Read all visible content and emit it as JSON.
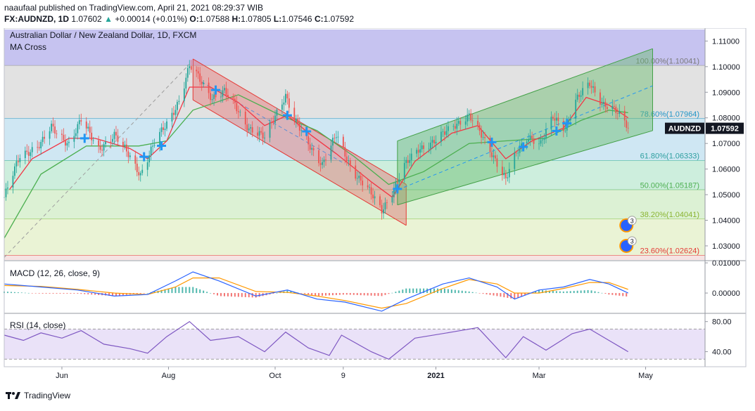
{
  "header": {
    "publisher": "naaufaal published on TradingView.com, April 21, 2021 08:29:37 WIB",
    "symbol": "FX:AUDNZD, 1D",
    "last": "1.07602",
    "change_arrow": "▲",
    "change": "+0.00014 (+0.01%)",
    "open_label": "O:",
    "open": "1.07588",
    "high_label": "H:",
    "high": "1.07805",
    "low_label": "L:",
    "low": "1.07546",
    "close_label": "C:",
    "close": "1.07592"
  },
  "footer": {
    "brand": "TradingView"
  },
  "colors": {
    "up": "#26a69a",
    "down": "#ef5350",
    "ma_fast": "#f23645",
    "ma_slow": "#4caf50",
    "cross": "#2196f3",
    "macd_line": "#2962ff",
    "signal_line": "#ff9800",
    "rsi": "#7e57c2",
    "channel_down": "#e53935",
    "channel_up": "#43a047"
  },
  "chart_data": {
    "type": "line",
    "title": "Australian Dollar / New Zealand Dollar, 1D, FXCM",
    "indicator_label": "MA Cross",
    "price_tag_label": "AUDNZD",
    "price_tag_value": "1.07592",
    "ylim": [
      1.0245,
      1.1145
    ],
    "y_ticks": [
      "1.11000",
      "1.10000",
      "1.09000",
      "1.08000",
      "1.07000",
      "1.06000",
      "1.05000",
      "1.04000",
      "1.03000"
    ],
    "x_tick_labels": [
      {
        "label": "Jun",
        "t": "2020-06-01"
      },
      {
        "label": "Aug",
        "t": "2020-08-01"
      },
      {
        "label": "Oct",
        "t": "2020-10-01"
      },
      {
        "label": "9",
        "t": "2020-11-09"
      },
      {
        "label": "2021",
        "t": "2021-01-01",
        "bold": true
      },
      {
        "label": "Mar",
        "t": "2021-03-01"
      },
      {
        "label": "May",
        "t": "2021-05-01"
      }
    ],
    "x_range": [
      "2020-04-29",
      "2021-06-04"
    ],
    "fib_levels": [
      {
        "label": "100.00%(1.10041)",
        "value": 1.10041,
        "fill": "#c6c3f0",
        "text": "#7a7a7a",
        "line": "#888888"
      },
      {
        "label": "78.60%(1.07964)",
        "value": 1.07964,
        "fill": "#e2e2e2",
        "text": "#2196c8",
        "line": "#2196c8"
      },
      {
        "label": "61.80%(1.06333)",
        "value": 1.06333,
        "fill": "#cfe7f3",
        "text": "#2e9fa0",
        "line": "#26a69a"
      },
      {
        "label": "50.00%(1.05187)",
        "value": 1.05187,
        "fill": "#cdeedd",
        "text": "#4caf50",
        "line": "#4caf50"
      },
      {
        "label": "38.20%(1.04041)",
        "value": 1.04041,
        "fill": "#dcf1d4",
        "text": "#8ab430",
        "line": "#8bc34a"
      },
      {
        "label": "23.60%(1.02624)",
        "value": 1.02624,
        "fill": "#eaf3d5",
        "text": "#e53935",
        "line": "#e53935"
      }
    ],
    "price_series": [
      {
        "t": "2020-04-29",
        "v": 1.049
      },
      {
        "t": "2020-05-08",
        "v": 1.065
      },
      {
        "t": "2020-05-20",
        "v": 1.07
      },
      {
        "t": "2020-05-26",
        "v": 1.076
      },
      {
        "t": "2020-06-05",
        "v": 1.07
      },
      {
        "t": "2020-06-12",
        "v": 1.079
      },
      {
        "t": "2020-06-22",
        "v": 1.068
      },
      {
        "t": "2020-07-01",
        "v": 1.073
      },
      {
        "t": "2020-07-10",
        "v": 1.065
      },
      {
        "t": "2020-07-16",
        "v": 1.058
      },
      {
        "t": "2020-07-24",
        "v": 1.07
      },
      {
        "t": "2020-07-31",
        "v": 1.078
      },
      {
        "t": "2020-08-08",
        "v": 1.088
      },
      {
        "t": "2020-08-13",
        "v": 1.1
      },
      {
        "t": "2020-08-18",
        "v": 1.096
      },
      {
        "t": "2020-08-26",
        "v": 1.088
      },
      {
        "t": "2020-09-02",
        "v": 1.09
      },
      {
        "t": "2020-09-08",
        "v": 1.085
      },
      {
        "t": "2020-09-16",
        "v": 1.076
      },
      {
        "t": "2020-09-25",
        "v": 1.072
      },
      {
        "t": "2020-10-03",
        "v": 1.084
      },
      {
        "t": "2020-10-07",
        "v": 1.089
      },
      {
        "t": "2020-10-12",
        "v": 1.079
      },
      {
        "t": "2020-10-20",
        "v": 1.07
      },
      {
        "t": "2020-10-28",
        "v": 1.062
      },
      {
        "t": "2020-11-05",
        "v": 1.073
      },
      {
        "t": "2020-11-14",
        "v": 1.06
      },
      {
        "t": "2020-11-23",
        "v": 1.052
      },
      {
        "t": "2020-12-01",
        "v": 1.044
      },
      {
        "t": "2020-12-07",
        "v": 1.051
      },
      {
        "t": "2020-12-14",
        "v": 1.061
      },
      {
        "t": "2020-12-22",
        "v": 1.068
      },
      {
        "t": "2021-01-01",
        "v": 1.071
      },
      {
        "t": "2021-01-11",
        "v": 1.077
      },
      {
        "t": "2021-01-20",
        "v": 1.081
      },
      {
        "t": "2021-01-27",
        "v": 1.073
      },
      {
        "t": "2021-02-04",
        "v": 1.064
      },
      {
        "t": "2021-02-10",
        "v": 1.056
      },
      {
        "t": "2021-02-16",
        "v": 1.066
      },
      {
        "t": "2021-02-23",
        "v": 1.073
      },
      {
        "t": "2021-03-02",
        "v": 1.07
      },
      {
        "t": "2021-03-09",
        "v": 1.08
      },
      {
        "t": "2021-03-16",
        "v": 1.076
      },
      {
        "t": "2021-03-22",
        "v": 1.087
      },
      {
        "t": "2021-03-30",
        "v": 1.093
      },
      {
        "t": "2021-04-06",
        "v": 1.086
      },
      {
        "t": "2021-04-12",
        "v": 1.084
      },
      {
        "t": "2021-04-17",
        "v": 1.08
      },
      {
        "t": "2021-04-21",
        "v": 1.0759
      }
    ],
    "ma_fast": [
      {
        "t": "2020-05-02",
        "v": 1.052
      },
      {
        "t": "2020-05-15",
        "v": 1.064
      },
      {
        "t": "2020-06-05",
        "v": 1.072
      },
      {
        "t": "2020-06-20",
        "v": 1.072
      },
      {
        "t": "2020-07-10",
        "v": 1.068
      },
      {
        "t": "2020-07-20",
        "v": 1.064
      },
      {
        "t": "2020-07-31",
        "v": 1.071
      },
      {
        "t": "2020-08-13",
        "v": 1.092
      },
      {
        "t": "2020-08-25",
        "v": 1.092
      },
      {
        "t": "2020-09-10",
        "v": 1.086
      },
      {
        "t": "2020-09-25",
        "v": 1.077
      },
      {
        "t": "2020-10-08",
        "v": 1.081
      },
      {
        "t": "2020-10-22",
        "v": 1.073
      },
      {
        "t": "2020-11-05",
        "v": 1.066
      },
      {
        "t": "2020-11-25",
        "v": 1.055
      },
      {
        "t": "2020-12-07",
        "v": 1.049
      },
      {
        "t": "2020-12-20",
        "v": 1.063
      },
      {
        "t": "2021-01-10",
        "v": 1.074
      },
      {
        "t": "2021-01-25",
        "v": 1.077
      },
      {
        "t": "2021-02-10",
        "v": 1.064
      },
      {
        "t": "2021-02-25",
        "v": 1.071
      },
      {
        "t": "2021-03-15",
        "v": 1.076
      },
      {
        "t": "2021-03-28",
        "v": 1.088
      },
      {
        "t": "2021-04-10",
        "v": 1.085
      },
      {
        "t": "2021-04-21",
        "v": 1.08
      }
    ],
    "ma_slow": [
      {
        "t": "2020-04-29",
        "v": 1.033
      },
      {
        "t": "2020-05-20",
        "v": 1.058
      },
      {
        "t": "2020-06-15",
        "v": 1.069
      },
      {
        "t": "2020-07-15",
        "v": 1.069
      },
      {
        "t": "2020-07-31",
        "v": 1.071
      },
      {
        "t": "2020-08-15",
        "v": 1.083
      },
      {
        "t": "2020-09-10",
        "v": 1.089
      },
      {
        "t": "2020-10-01",
        "v": 1.082
      },
      {
        "t": "2020-10-25",
        "v": 1.075
      },
      {
        "t": "2020-11-15",
        "v": 1.065
      },
      {
        "t": "2020-12-05",
        "v": 1.054
      },
      {
        "t": "2020-12-25",
        "v": 1.059
      },
      {
        "t": "2021-01-20",
        "v": 1.07
      },
      {
        "t": "2021-02-10",
        "v": 1.071
      },
      {
        "t": "2021-03-05",
        "v": 1.072
      },
      {
        "t": "2021-03-25",
        "v": 1.079
      },
      {
        "t": "2021-04-10",
        "v": 1.083
      },
      {
        "t": "2021-04-21",
        "v": 1.082
      }
    ],
    "ma_cross_markers": [
      "2020-06-14",
      "2020-07-18",
      "2020-07-28",
      "2020-08-28",
      "2020-10-08",
      "2020-10-19",
      "2020-12-10",
      "2021-02-02",
      "2021-02-20",
      "2021-03-11",
      "2021-03-17"
    ],
    "channels": [
      {
        "name": "descending",
        "color": "#e53935",
        "fill": "#e57373",
        "upper": [
          {
            "t": "2020-08-15",
            "v": 1.103
          },
          {
            "t": "2020-12-15",
            "v": 1.054
          }
        ],
        "lower": [
          {
            "t": "2020-08-15",
            "v": 1.087
          },
          {
            "t": "2020-12-15",
            "v": 1.038
          }
        ]
      },
      {
        "name": "ascending",
        "color": "#43a047",
        "fill": "#66bb6a",
        "upper": [
          {
            "t": "2020-12-10",
            "v": 1.071
          },
          {
            "t": "2021-05-05",
            "v": 1.107
          }
        ],
        "lower": [
          {
            "t": "2020-12-10",
            "v": 1.046
          },
          {
            "t": "2021-05-05",
            "v": 1.075
          }
        ]
      }
    ],
    "dashed_trend": [
      {
        "from": {
          "t": "2020-04-29",
          "v": 1.0255
        },
        "to": {
          "t": "2020-08-13",
          "v": 1.101
        },
        "color": "#9e9e9e"
      },
      {
        "from": {
          "t": "2020-08-20",
          "v": 1.094
        },
        "to": {
          "t": "2020-11-10",
          "v": 1.062
        },
        "color": "#5b8fd6"
      },
      {
        "from": {
          "t": "2020-12-07",
          "v": 1.051
        },
        "to": {
          "t": "2021-05-05",
          "v": 1.0925
        },
        "color": "#2196f3"
      }
    ],
    "event_badges": [
      {
        "t": "2021-04-20",
        "v": 1.038,
        "count": "3"
      },
      {
        "t": "2021-04-20",
        "v": 1.03,
        "count": "3"
      }
    ],
    "macd": {
      "label": "MACD (12, 26, close, 9)",
      "ylim": [
        -0.0065,
        0.0105
      ],
      "y_ticks": [
        "0.01000",
        "0.00000"
      ],
      "macd_line": [
        {
          "t": "2020-04-29",
          "v": 0.003
        },
        {
          "t": "2020-05-20",
          "v": 0.002
        },
        {
          "t": "2020-06-10",
          "v": 0.001
        },
        {
          "t": "2020-07-01",
          "v": -0.001
        },
        {
          "t": "2020-07-20",
          "v": -0.0005
        },
        {
          "t": "2020-08-05",
          "v": 0.004
        },
        {
          "t": "2020-08-15",
          "v": 0.007
        },
        {
          "t": "2020-08-30",
          "v": 0.004
        },
        {
          "t": "2020-09-20",
          "v": -0.001
        },
        {
          "t": "2020-10-08",
          "v": 0.001
        },
        {
          "t": "2020-10-25",
          "v": -0.002
        },
        {
          "t": "2020-11-10",
          "v": -0.003
        },
        {
          "t": "2020-12-01",
          "v": -0.006
        },
        {
          "t": "2020-12-15",
          "v": -0.002
        },
        {
          "t": "2021-01-05",
          "v": 0.003
        },
        {
          "t": "2021-01-20",
          "v": 0.005
        },
        {
          "t": "2021-02-05",
          "v": 0.002
        },
        {
          "t": "2021-02-15",
          "v": -0.002
        },
        {
          "t": "2021-03-01",
          "v": 0.001
        },
        {
          "t": "2021-03-15",
          "v": 0.002
        },
        {
          "t": "2021-03-30",
          "v": 0.0045
        },
        {
          "t": "2021-04-10",
          "v": 0.003
        },
        {
          "t": "2021-04-21",
          "v": 0.0
        }
      ],
      "signal_line": [
        {
          "t": "2020-04-29",
          "v": 0.0025
        },
        {
          "t": "2020-05-20",
          "v": 0.0022
        },
        {
          "t": "2020-06-10",
          "v": 0.0012
        },
        {
          "t": "2020-07-01",
          "v": 0.0
        },
        {
          "t": "2020-07-20",
          "v": -0.0005
        },
        {
          "t": "2020-08-05",
          "v": 0.002
        },
        {
          "t": "2020-08-15",
          "v": 0.005
        },
        {
          "t": "2020-08-30",
          "v": 0.005
        },
        {
          "t": "2020-09-20",
          "v": 0.0005
        },
        {
          "t": "2020-10-08",
          "v": 0.0002
        },
        {
          "t": "2020-10-25",
          "v": -0.001
        },
        {
          "t": "2020-11-10",
          "v": -0.0025
        },
        {
          "t": "2020-12-01",
          "v": -0.005
        },
        {
          "t": "2020-12-15",
          "v": -0.0035
        },
        {
          "t": "2021-01-05",
          "v": 0.0015
        },
        {
          "t": "2021-01-20",
          "v": 0.0045
        },
        {
          "t": "2021-02-05",
          "v": 0.003
        },
        {
          "t": "2021-02-15",
          "v": 0.0
        },
        {
          "t": "2021-03-01",
          "v": 0.0
        },
        {
          "t": "2021-03-15",
          "v": 0.0015
        },
        {
          "t": "2021-03-30",
          "v": 0.0035
        },
        {
          "t": "2021-04-10",
          "v": 0.0035
        },
        {
          "t": "2021-04-21",
          "v": 0.0012
        }
      ]
    },
    "rsi": {
      "label": "RSI (14, close)",
      "ylim": [
        20,
        90
      ],
      "y_ticks": [
        "80.00",
        "40.00"
      ],
      "band": [
        30,
        70
      ],
      "series": [
        {
          "t": "2020-04-29",
          "v": 62
        },
        {
          "t": "2020-05-10",
          "v": 55
        },
        {
          "t": "2020-05-20",
          "v": 65
        },
        {
          "t": "2020-06-01",
          "v": 58
        },
        {
          "t": "2020-06-12",
          "v": 68
        },
        {
          "t": "2020-06-25",
          "v": 50
        },
        {
          "t": "2020-07-10",
          "v": 44
        },
        {
          "t": "2020-07-20",
          "v": 38
        },
        {
          "t": "2020-07-31",
          "v": 60
        },
        {
          "t": "2020-08-13",
          "v": 80
        },
        {
          "t": "2020-08-25",
          "v": 55
        },
        {
          "t": "2020-09-10",
          "v": 60
        },
        {
          "t": "2020-09-25",
          "v": 40
        },
        {
          "t": "2020-10-07",
          "v": 66
        },
        {
          "t": "2020-10-20",
          "v": 45
        },
        {
          "t": "2020-11-01",
          "v": 35
        },
        {
          "t": "2020-11-08",
          "v": 62
        },
        {
          "t": "2020-11-25",
          "v": 40
        },
        {
          "t": "2020-12-05",
          "v": 30
        },
        {
          "t": "2020-12-20",
          "v": 58
        },
        {
          "t": "2021-01-10",
          "v": 66
        },
        {
          "t": "2021-01-25",
          "v": 72
        },
        {
          "t": "2021-02-10",
          "v": 32
        },
        {
          "t": "2021-02-20",
          "v": 60
        },
        {
          "t": "2021-03-05",
          "v": 42
        },
        {
          "t": "2021-03-20",
          "v": 64
        },
        {
          "t": "2021-03-30",
          "v": 70
        },
        {
          "t": "2021-04-10",
          "v": 55
        },
        {
          "t": "2021-04-21",
          "v": 40
        }
      ]
    }
  }
}
